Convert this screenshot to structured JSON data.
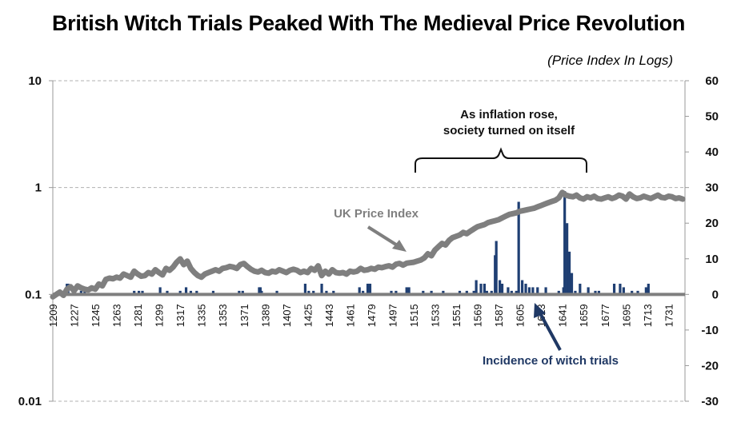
{
  "title": "British Witch Trials Peaked With The Medieval Price Revolution",
  "subtitle": "(Price Index In Logs)",
  "annotations": {
    "inflation_line1": "As inflation rose,",
    "inflation_line2": "society turned on itself",
    "price_label": "UK Price Index",
    "witch_label": "Incidence of witch trials"
  },
  "colors": {
    "price_line": "#7f7f7f",
    "witch_bars": "#1f3f73",
    "witch_label": "#1f3864",
    "price_label": "#7f7f7f",
    "grid": "#b0b0b0"
  },
  "chart_data": {
    "type": "line",
    "left_axis": {
      "scale": "log",
      "ylim": [
        0.01,
        10
      ],
      "ticks": [
        "0.01",
        "0.1",
        "1",
        "10"
      ]
    },
    "right_axis": {
      "scale": "linear",
      "ylim": [
        -30,
        60
      ],
      "ticks": [
        "-30",
        "-20",
        "-10",
        "0",
        "10",
        "20",
        "30",
        "40",
        "50",
        "60"
      ]
    },
    "x_range": [
      1209,
      1745
    ],
    "x_ticks": [
      "1209",
      "1227",
      "1245",
      "1263",
      "1281",
      "1299",
      "1317",
      "1335",
      "1353",
      "1371",
      "1389",
      "1407",
      "1425",
      "1443",
      "1461",
      "1479",
      "1497",
      "1515",
      "1533",
      "1551",
      "1569",
      "1587",
      "1605",
      "1623",
      "1641",
      "1659",
      "1677",
      "1695",
      "1713",
      "1731"
    ],
    "grid": "horizontal dashed",
    "series": [
      {
        "name": "UK Price Index",
        "axis": "left",
        "x": [
          1209,
          1212,
          1215,
          1218,
          1221,
          1224,
          1227,
          1230,
          1233,
          1236,
          1239,
          1242,
          1245,
          1248,
          1251,
          1254,
          1257,
          1260,
          1263,
          1266,
          1269,
          1272,
          1275,
          1278,
          1281,
          1284,
          1287,
          1290,
          1293,
          1296,
          1299,
          1302,
          1305,
          1308,
          1311,
          1314,
          1317,
          1320,
          1323,
          1326,
          1329,
          1332,
          1335,
          1338,
          1341,
          1344,
          1347,
          1350,
          1353,
          1356,
          1359,
          1362,
          1365,
          1368,
          1371,
          1374,
          1377,
          1380,
          1383,
          1386,
          1389,
          1392,
          1395,
          1398,
          1401,
          1404,
          1407,
          1410,
          1413,
          1416,
          1419,
          1422,
          1425,
          1428,
          1431,
          1434,
          1437,
          1440,
          1443,
          1446,
          1449,
          1452,
          1455,
          1458,
          1461,
          1464,
          1467,
          1470,
          1473,
          1476,
          1479,
          1482,
          1485,
          1488,
          1491,
          1494,
          1497,
          1500,
          1503,
          1506,
          1509,
          1512,
          1515,
          1518,
          1521,
          1524,
          1527,
          1530,
          1533,
          1536,
          1539,
          1542,
          1545,
          1548,
          1551,
          1554,
          1557,
          1560,
          1563,
          1566,
          1569,
          1572,
          1575,
          1578,
          1581,
          1584,
          1587,
          1590,
          1593,
          1596,
          1599,
          1602,
          1605,
          1608,
          1611,
          1614,
          1617,
          1620,
          1623,
          1626,
          1629,
          1632,
          1635,
          1638,
          1641,
          1644,
          1647,
          1650,
          1653,
          1656,
          1659,
          1662,
          1665,
          1668,
          1671,
          1674,
          1677,
          1680,
          1683,
          1686,
          1689,
          1692,
          1695,
          1698,
          1701,
          1704,
          1707,
          1710,
          1713,
          1716,
          1719,
          1722,
          1725,
          1728,
          1731,
          1734,
          1737,
          1740,
          1743
        ],
        "values": [
          0.095,
          0.1,
          0.105,
          0.098,
          0.112,
          0.118,
          0.108,
          0.12,
          0.115,
          0.112,
          0.11,
          0.115,
          0.112,
          0.125,
          0.12,
          0.138,
          0.142,
          0.14,
          0.145,
          0.142,
          0.155,
          0.15,
          0.145,
          0.165,
          0.155,
          0.148,
          0.15,
          0.16,
          0.155,
          0.17,
          0.16,
          0.152,
          0.175,
          0.168,
          0.18,
          0.2,
          0.215,
          0.19,
          0.205,
          0.175,
          0.16,
          0.15,
          0.145,
          0.155,
          0.16,
          0.165,
          0.17,
          0.165,
          0.175,
          0.178,
          0.183,
          0.18,
          0.175,
          0.19,
          0.195,
          0.182,
          0.172,
          0.165,
          0.162,
          0.168,
          0.16,
          0.158,
          0.165,
          0.162,
          0.17,
          0.165,
          0.16,
          0.168,
          0.172,
          0.168,
          0.16,
          0.165,
          0.16,
          0.175,
          0.168,
          0.185,
          0.15,
          0.165,
          0.155,
          0.17,
          0.16,
          0.158,
          0.16,
          0.155,
          0.165,
          0.162,
          0.165,
          0.175,
          0.168,
          0.17,
          0.175,
          0.172,
          0.18,
          0.178,
          0.182,
          0.185,
          0.18,
          0.192,
          0.195,
          0.188,
          0.196,
          0.198,
          0.2,
          0.205,
          0.21,
          0.22,
          0.24,
          0.23,
          0.26,
          0.28,
          0.3,
          0.29,
          0.32,
          0.34,
          0.35,
          0.36,
          0.38,
          0.37,
          0.39,
          0.41,
          0.43,
          0.44,
          0.45,
          0.47,
          0.48,
          0.49,
          0.5,
          0.52,
          0.54,
          0.56,
          0.57,
          0.58,
          0.6,
          0.61,
          0.62,
          0.63,
          0.64,
          0.66,
          0.68,
          0.7,
          0.72,
          0.74,
          0.76,
          0.8,
          0.9,
          0.85,
          0.83,
          0.82,
          0.85,
          0.8,
          0.78,
          0.82,
          0.8,
          0.83,
          0.79,
          0.78,
          0.8,
          0.82,
          0.79,
          0.81,
          0.85,
          0.83,
          0.78,
          0.87,
          0.82,
          0.79,
          0.8,
          0.83,
          0.81,
          0.79,
          0.82,
          0.85,
          0.81,
          0.8,
          0.83,
          0.82,
          0.79,
          0.8,
          0.78
        ]
      },
      {
        "name": "Incidence of witch trials",
        "axis": "right",
        "type": "bar",
        "x": [
          1221,
          1222,
          1233,
          1236,
          1278,
          1282,
          1285,
          1300,
          1306,
          1317,
          1322,
          1326,
          1331,
          1345,
          1367,
          1370,
          1384,
          1385,
          1386,
          1399,
          1423,
          1426,
          1430,
          1437,
          1441,
          1447,
          1469,
          1472,
          1476,
          1477,
          1478,
          1496,
          1500,
          1509,
          1511,
          1523,
          1530,
          1540,
          1554,
          1560,
          1566,
          1568,
          1572,
          1575,
          1577,
          1581,
          1584,
          1585,
          1588,
          1590,
          1595,
          1598,
          1602,
          1604,
          1607,
          1610,
          1613,
          1616,
          1620,
          1627,
          1638,
          1642,
          1643,
          1645,
          1647,
          1649,
          1652,
          1656,
          1663,
          1669,
          1672,
          1685,
          1690,
          1693,
          1700,
          1705,
          1712,
          1714
        ],
        "values": [
          3,
          3,
          1,
          1,
          1,
          1,
          1,
          2,
          1,
          1,
          2,
          1,
          1,
          1,
          1,
          1,
          2,
          2,
          1,
          1,
          3,
          1,
          1,
          3,
          1,
          1,
          2,
          1,
          3,
          3,
          3,
          1,
          1,
          2,
          2,
          1,
          1,
          1,
          1,
          1,
          1,
          4,
          3,
          3,
          1,
          1,
          11,
          15,
          4,
          3,
          2,
          1,
          1,
          26,
          4,
          3,
          2,
          2,
          2,
          2,
          1,
          2,
          29,
          20,
          12,
          6,
          1,
          3,
          2,
          1,
          1,
          3,
          3,
          2,
          1,
          1,
          2,
          3
        ]
      }
    ]
  }
}
